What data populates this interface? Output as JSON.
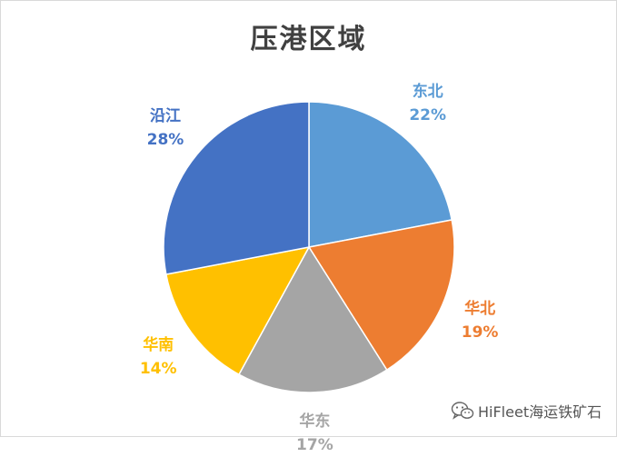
{
  "chart_data": {
    "type": "pie",
    "title": "压港区域",
    "slices": [
      {
        "label": "东北",
        "value": 22,
        "value_label": "22%",
        "color": "#5B9BD5"
      },
      {
        "label": "华北",
        "value": 19,
        "value_label": "19%",
        "color": "#ED7D31"
      },
      {
        "label": "华东",
        "value": 17,
        "value_label": "17%",
        "color": "#A5A5A5"
      },
      {
        "label": "华南",
        "value": 14,
        "value_label": "14%",
        "color": "#FFC000"
      },
      {
        "label": "沿江",
        "value": 28,
        "value_label": "28%",
        "color": "#4472C4"
      }
    ],
    "start_angle_deg": 0,
    "direction": "clockwise",
    "legend": "none"
  },
  "watermark": {
    "text": "HiFleet海运铁矿石",
    "icon": "wechat-icon"
  }
}
